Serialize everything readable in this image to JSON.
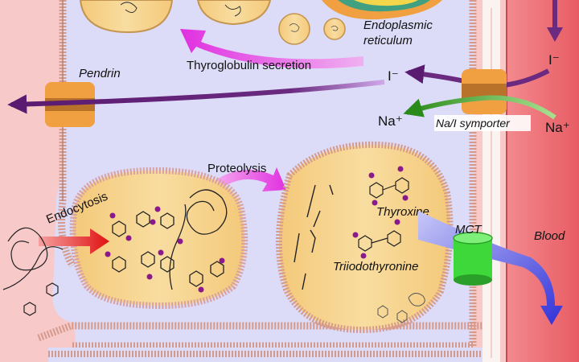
{
  "labels": {
    "endoplasmic_reticulum_line1": "Endoplasmic",
    "endoplasmic_reticulum_line2": "reticulum",
    "thyroglobulin_secretion": "Thyroglobulin secretion",
    "pendrin": "Pendrin",
    "iodide_left": "I⁻",
    "iodide_right": "I⁻",
    "sodium_left": "Na⁺",
    "sodium_right": "Na⁺",
    "na_i_symporter": "Na/I symporter",
    "proteolysis": "Proteolysis",
    "endocytosis": "Endocytosis",
    "thyroxine": "Thyroxine",
    "triiodothyronine": "Triiodothyronine",
    "mct": "MCT",
    "blood": "Blood"
  },
  "colors": {
    "colloid": "#f7c9c9",
    "cytoplasm": "#dcdcf8",
    "vesicle_fill": "#f6d792",
    "vesicle_edge": "#d8a85a",
    "blood": "#ec6e74",
    "iodide_arrow": "#6a2a80",
    "sodium_arrow": "#3a8a2a",
    "secretion_arrow": "#e040d8",
    "endocytosis_arrow": "#e02020",
    "hormone_arrow": "#3a3ad8",
    "transporter_orange": "#f0a040",
    "mct_green": "#3ed83a"
  }
}
